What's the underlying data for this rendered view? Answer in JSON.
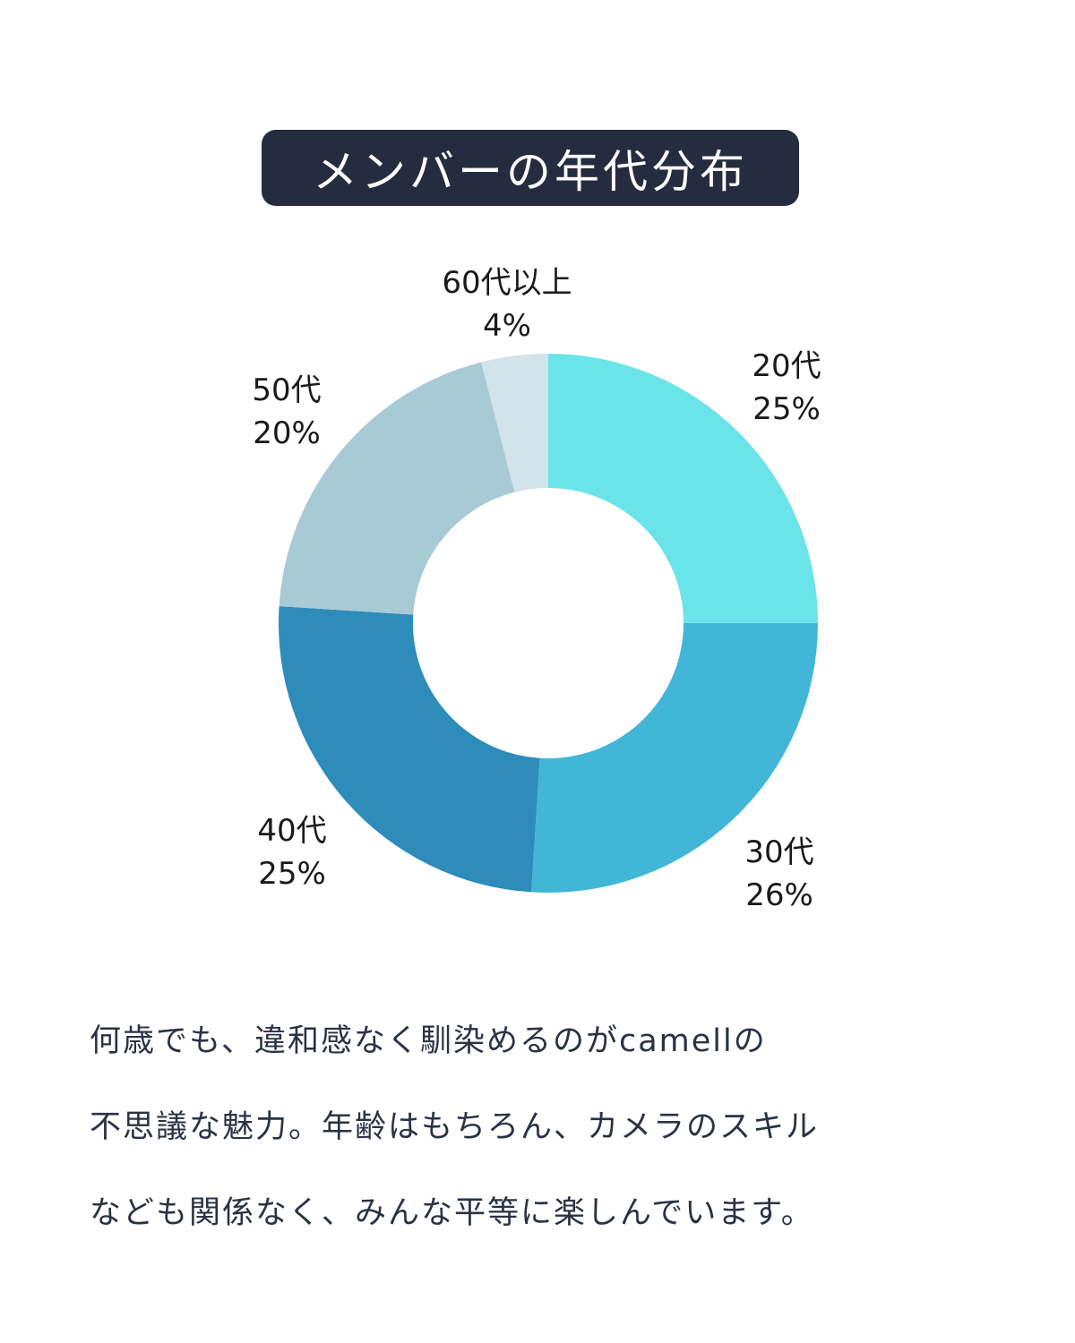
{
  "title": "メンバーの年代分布",
  "chart_data": {
    "type": "pie",
    "categories": [
      "20代",
      "30代",
      "40代",
      "50代",
      "60代以上"
    ],
    "values": [
      25,
      26,
      25,
      20,
      4
    ],
    "value_labels": [
      "25%",
      "26%",
      "25%",
      "20%",
      "4%"
    ],
    "unit": "%",
    "colors": [
      "#6ae4e8",
      "#42b6d6",
      "#2d8cba",
      "#a8cad4",
      "#d3e3ea"
    ],
    "legend": "none"
  },
  "caption": {
    "lines": [
      "何歳でも、違和感なく馴染めるのがcamellの",
      "不思議な魅力。年齢はもちろん、カメラのスキル",
      "なども関係なく、みんな平等に楽しんでいます。"
    ]
  }
}
